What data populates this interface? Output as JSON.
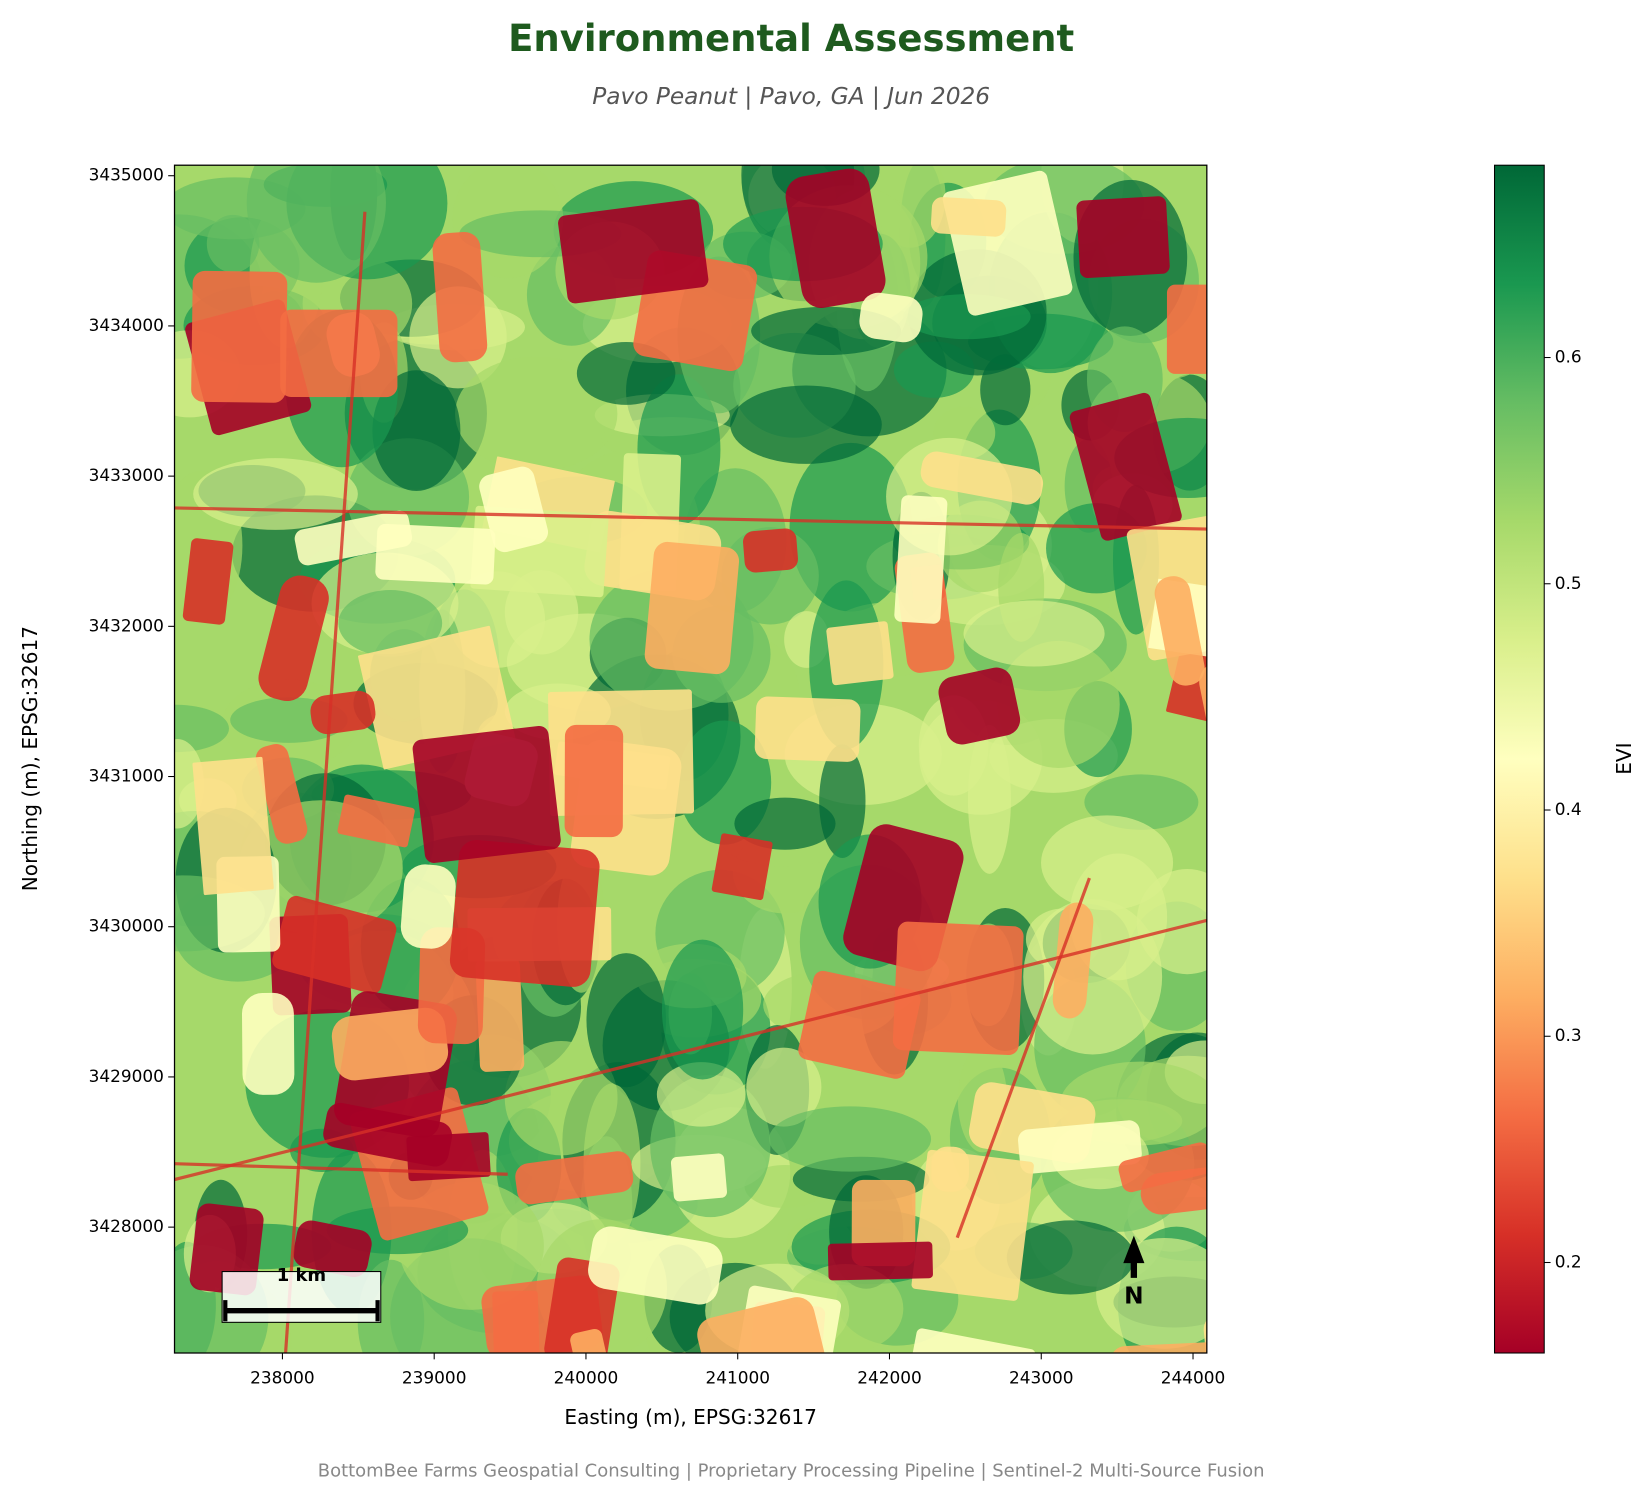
{
  "chart_data": {
    "type": "raster",
    "title": "Environmental Assessment",
    "subtitle": "Pavo Peanut  |  Pavo, GA  |  Jun 2026",
    "xlabel": "Easting (m), EPSG:32617",
    "ylabel": "Northing (m), EPSG:32617",
    "xlim": [
      237289,
      244091
    ],
    "ylim": [
      3427162,
      3435070
    ],
    "xticks": [
      238000,
      239000,
      240000,
      241000,
      242000,
      243000,
      244000
    ],
    "yticks": [
      3428000,
      3429000,
      3430000,
      3431000,
      3432000,
      3433000,
      3434000,
      3435000
    ],
    "colorbar": {
      "label": "EVI",
      "lim": [
        0.16,
        0.685
      ],
      "ticks": [
        0.2,
        0.3,
        0.4,
        0.5,
        0.6
      ],
      "colors": [
        "#a50026",
        "#d73027",
        "#f46d43",
        "#fdae61",
        "#fee08b",
        "#ffffbf",
        "#d9ef8b",
        "#a6d96a",
        "#66bd63",
        "#1a9850",
        "#006837"
      ]
    },
    "scale_bar": "1 km",
    "north_arrow": "N",
    "footer": "BottomBee Farms Geospatial Consulting  |  Proprietary Processing Pipeline  |  Sentinel-2 Multi-Source Fusion"
  }
}
